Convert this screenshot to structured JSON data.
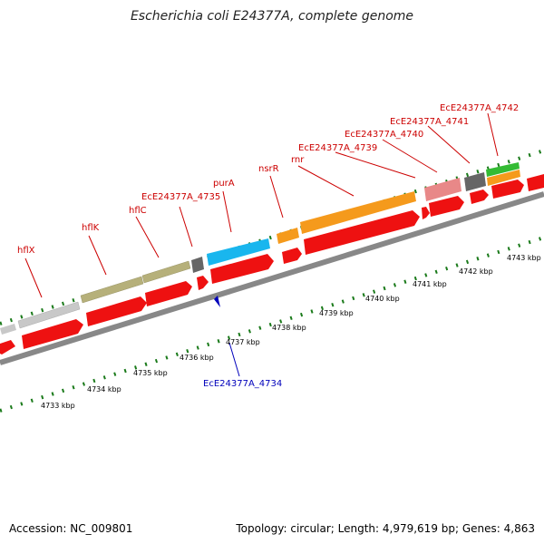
{
  "title": "Escherichia coli E24377A, complete genome",
  "accession": "Accession: NC_009801",
  "summary": "Topology: circular; Length: 4,979,619 bp; Genes: 4,863",
  "colors": {
    "cds_red": "#ee1111",
    "label_red": "#cc0000",
    "label_blue": "#0000bb",
    "backbone": "#888888",
    "tick_green": "#1a7a1a",
    "gray_gene": "#c8c8c8",
    "olive_gene": "#b6b07a",
    "dark_gene": "#666666",
    "cyan_gene": "#19b6ee",
    "orange_gene": "#f59a1c",
    "pink_gene": "#e88888",
    "green_gene": "#33bb33"
  },
  "kbp_labels": [
    "4733 kbp",
    "4734 kbp",
    "4735 kbp",
    "4736 kbp",
    "4737 kbp",
    "4738 kbp",
    "4739 kbp",
    "4740 kbp",
    "4741 kbp",
    "4742 kbp",
    "4743 kbp"
  ],
  "gene_labels_top": [
    "hflX",
    "hflK",
    "hflC",
    "EcE24377A_4735",
    "purA",
    "nsrR",
    "rnr",
    "EcE24377A_4739",
    "EcE24377A_4740",
    "EcE24377A_4741",
    "EcE24377A_4742"
  ],
  "gene_label_bottom": "EcE24377A_4734"
}
